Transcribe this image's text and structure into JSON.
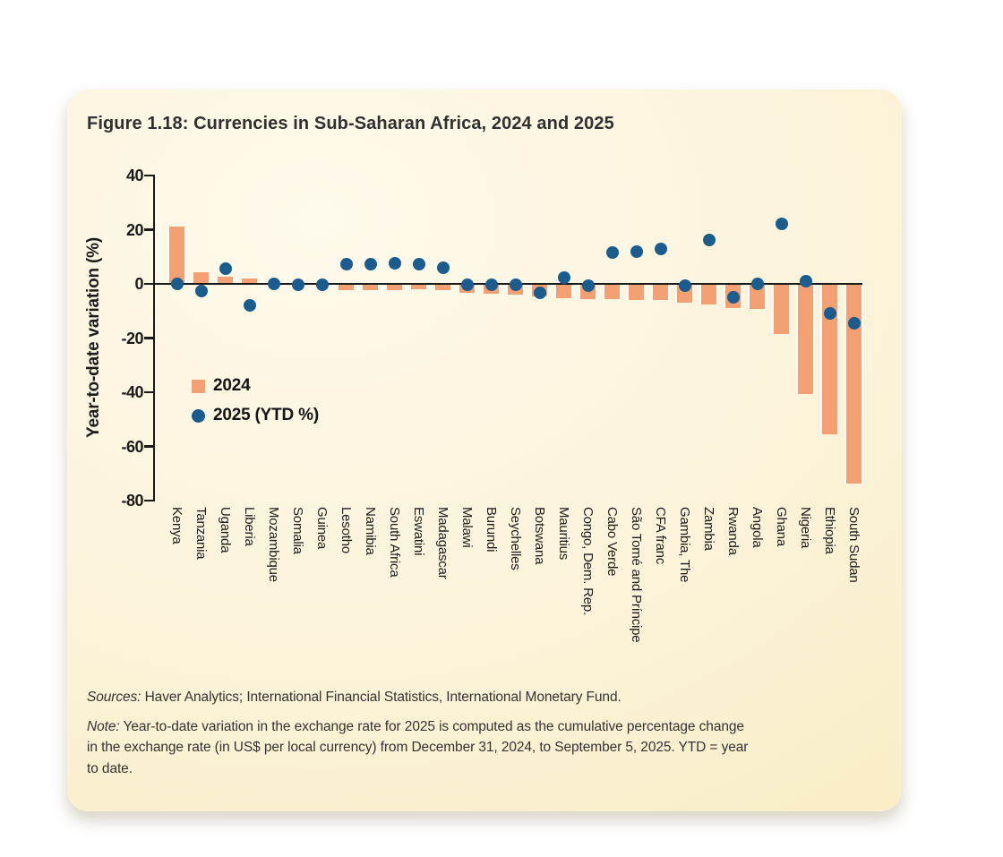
{
  "figure": {
    "title": "Figure 1.18: Currencies in Sub-Saharan Africa, 2024 and 2025"
  },
  "sources": {
    "label": "Sources:",
    "text": "Haver Analytics; International Financial Statistics, International Monetary Fund."
  },
  "note": {
    "label": "Note:",
    "text": "Year-to-date variation in the exchange rate for 2025 is computed as the cumulative percentage change in the exchange rate (in US$ per local currency) from December 31, 2024, to September 5, 2025. YTD = year to date."
  },
  "colors": {
    "card_background_top": "#FEFAEC",
    "card_background_bottom": "#F9EDC5",
    "bar_2024": "#F3A173",
    "dot_2025": "#1A5C8D",
    "axis": "#1A1A1A",
    "text": "#303030"
  },
  "chart_data": {
    "type": "bar",
    "title": "Figure 1.18: Currencies in Sub-Saharan Africa, 2024 and 2025",
    "xlabel": "",
    "ylabel": "Year-to-date variation (%)",
    "ylim": [
      -80,
      40
    ],
    "yticks": [
      40,
      20,
      0,
      -20,
      -40,
      -60,
      -80
    ],
    "grid": false,
    "legend_position": "inside-left",
    "categories": [
      "Kenya",
      "Tanzania",
      "Uganda",
      "Liberia",
      "Mozambique",
      "Somalia",
      "Guinea",
      "Lesotho",
      "Namibia",
      "South Africa",
      "Eswatini",
      "Madagascar",
      "Malawi",
      "Burundi",
      "Seychelles",
      "Botswana",
      "Mauritius",
      "Congo, Dem. Rep.",
      "Cabo Verde",
      "São Tomé and Príncipe",
      "CFA franc",
      "Gambia, The",
      "Zambia",
      "Rwanda",
      "Angola",
      "Ghana",
      "Nigeria",
      "Ethiopia",
      "South Sudan"
    ],
    "series": [
      {
        "name": "2024",
        "type": "bar",
        "color": "#F3A173",
        "values": [
          21,
          4.3,
          2.6,
          2.1,
          0.3,
          0.2,
          0.1,
          -2.3,
          -2.3,
          -2.4,
          -2.1,
          -2.3,
          -3.4,
          -3.5,
          -4,
          -4.5,
          -5.4,
          -5.7,
          -5.7,
          -6,
          -6,
          -7,
          -7.6,
          -9,
          -9.3,
          -18.4,
          -40.7,
          -55.6,
          -73.6
        ]
      },
      {
        "name": "2025 (YTD %)",
        "type": "scatter",
        "color": "#1A5C8D",
        "values": [
          0,
          -2.5,
          5.5,
          -8,
          0,
          -0.2,
          -0.3,
          7.3,
          7.3,
          7.5,
          7.4,
          6,
          -0.4,
          -0.4,
          -0.3,
          -3.2,
          2.2,
          -0.7,
          11.7,
          11.9,
          12.8,
          -0.5,
          16.1,
          -4.8,
          0.1,
          22,
          0.9,
          -11,
          -14.5
        ]
      }
    ]
  }
}
